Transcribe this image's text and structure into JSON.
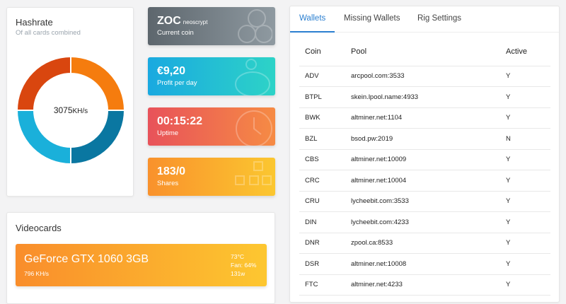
{
  "hashrate": {
    "title": "Hashrate",
    "subtitle": "Of all cards combined",
    "value": "3075",
    "unit": "KH/s",
    "segments": [
      {
        "share": 25,
        "color": "#f57c0e"
      },
      {
        "share": 25,
        "color": "#0a77a1"
      },
      {
        "share": 25,
        "color": "#1ab0da"
      },
      {
        "share": 25,
        "color": "#d9460f"
      }
    ]
  },
  "stats": [
    {
      "value": "ZOC",
      "extra": "neoscrypt",
      "label": "Current coin",
      "icon": "coins-icon"
    },
    {
      "value": "€9,20",
      "label": "Profit per day",
      "icon": "piggy-bank-icon"
    },
    {
      "value": "00:15:22",
      "label": "Uptime",
      "icon": "clock-icon"
    },
    {
      "value": "183/0",
      "label": "Shares",
      "icon": "blocks-icon"
    }
  ],
  "videocards": {
    "title": "Videocards",
    "cards": [
      {
        "name": "GeForce GTX 1060 3GB",
        "rate": "796 KH/s",
        "temp": "73°C",
        "fan": "Fan: 64%",
        "power": "131w"
      }
    ]
  },
  "panel": {
    "tabs": [
      "Wallets",
      "Missing Wallets",
      "Rig Settings"
    ],
    "active_tab": "Wallets",
    "columns": [
      "Coin",
      "Pool",
      "Active"
    ],
    "rows": [
      [
        "ADV",
        "arcpool.com:3533",
        "Y"
      ],
      [
        "BTPL",
        "skein.lpool.name:4933",
        "Y"
      ],
      [
        "BWK",
        "altminer.net:1104",
        "Y"
      ],
      [
        "BZL",
        "bsod.pw:2019",
        "N"
      ],
      [
        "CBS",
        "altminer.net:10009",
        "Y"
      ],
      [
        "CRC",
        "altminer.net:10004",
        "Y"
      ],
      [
        "CRU",
        "lycheebit.com:3533",
        "Y"
      ],
      [
        "DIN",
        "lycheebit.com:4233",
        "Y"
      ],
      [
        "DNR",
        "zpool.ca:8533",
        "Y"
      ],
      [
        "DSR",
        "altminer.net:10008",
        "Y"
      ],
      [
        "FTC",
        "altminer.net:4233",
        "Y"
      ]
    ]
  }
}
